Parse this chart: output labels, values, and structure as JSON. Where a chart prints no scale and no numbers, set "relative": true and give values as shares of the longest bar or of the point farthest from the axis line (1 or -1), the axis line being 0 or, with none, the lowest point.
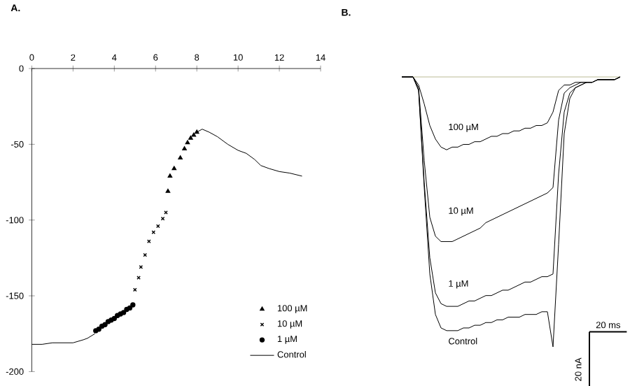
{
  "chart_data": [
    {
      "type": "line",
      "title": "A.",
      "xlim": [
        0,
        14
      ],
      "ylim": [
        -200,
        0
      ],
      "xticks": [
        0,
        2,
        4,
        6,
        8,
        10,
        12,
        14
      ],
      "yticks": [
        -200,
        -150,
        -100,
        -50,
        0
      ],
      "legend": "bottom right",
      "grid": false,
      "series": [
        {
          "name": "100 µM",
          "type": "scatter",
          "marker": "triangle",
          "color": "#000000",
          "x": [
            6.6,
            6.7,
            6.9,
            7.2,
            7.4,
            7.55,
            7.7,
            7.85,
            8.0
          ],
          "values": [
            -81,
            -71,
            -66,
            -59,
            -53,
            -49,
            -46,
            -44,
            -42
          ]
        },
        {
          "name": "10 µM",
          "type": "scatter",
          "marker": "cross",
          "color": "#000000",
          "x": [
            5.0,
            5.18,
            5.29,
            5.49,
            5.68,
            5.9,
            6.12,
            6.35,
            6.5
          ],
          "values": [
            -146,
            -138,
            -131,
            -123,
            -114,
            -108,
            -104,
            -99,
            -95
          ]
        },
        {
          "name": "1 µM",
          "type": "scatter",
          "marker": "circle",
          "color": "#000000",
          "x": [
            3.1,
            3.25,
            3.4,
            3.55,
            3.7,
            3.85,
            4.0,
            4.15,
            4.3,
            4.45,
            4.6,
            4.75,
            4.9
          ],
          "values": [
            -173,
            -172,
            -170,
            -169,
            -167,
            -166,
            -165,
            -163,
            -162,
            -161,
            -159,
            -158,
            -156
          ]
        },
        {
          "name": "Control",
          "type": "line",
          "marker": "none",
          "color": "#000000",
          "x": [
            0,
            0.5,
            1.0,
            1.5,
            2.0,
            2.5,
            2.7,
            3.06,
            5.5,
            8.0,
            8.26,
            8.6,
            9.0,
            9.5,
            10.0,
            10.4,
            10.8,
            11.1,
            11.5,
            12.0,
            12.5,
            13.1
          ],
          "values": [
            -182,
            -182,
            -181,
            -181,
            -181,
            -179,
            -178,
            -175,
            null,
            -42,
            -40,
            -42,
            -45,
            -50,
            -54,
            -56,
            -60,
            -64,
            -66,
            -68,
            -69,
            -71
          ]
        }
      ]
    },
    {
      "type": "line",
      "title": "B.",
      "relative": true,
      "legend": false,
      "marker": "none",
      "categories": [
        null,
        null,
        null,
        null,
        null,
        null,
        null,
        null,
        null,
        null,
        null,
        null,
        null,
        null,
        null,
        null,
        null,
        null,
        null,
        null,
        null,
        null,
        null,
        null,
        null,
        null,
        null,
        null,
        null,
        null,
        null,
        null,
        null,
        null,
        null,
        null,
        null,
        null,
        null,
        null
      ],
      "annotations": [
        "20 ms",
        "20 nA"
      ],
      "series": [
        {
          "name": "100 µM",
          "color": "#000000",
          "values": [
            0,
            0,
            0,
            -0.03,
            -0.1,
            -0.18,
            -0.23,
            -0.26,
            -0.27,
            -0.26,
            -0.26,
            -0.25,
            -0.25,
            -0.24,
            -0.24,
            -0.23,
            -0.22,
            -0.22,
            -0.21,
            -0.21,
            -0.2,
            -0.2,
            -0.19,
            -0.19,
            -0.18,
            -0.18,
            -0.17,
            -0.13,
            -0.05,
            -0.03,
            -0.03,
            -0.02,
            -0.02,
            -0.02,
            -0.02,
            -0.01,
            -0.01,
            -0.01,
            -0.01,
            0
          ]
        },
        {
          "name": "10 µM",
          "color": "#000000",
          "values": [
            0,
            0,
            0,
            -0.04,
            -0.31,
            -0.52,
            -0.59,
            -0.61,
            -0.61,
            -0.61,
            -0.6,
            -0.59,
            -0.58,
            -0.57,
            -0.56,
            -0.54,
            -0.53,
            -0.52,
            -0.51,
            -0.5,
            -0.49,
            -0.48,
            -0.47,
            -0.46,
            -0.45,
            -0.44,
            -0.43,
            -0.41,
            -0.16,
            -0.06,
            -0.04,
            -0.03,
            -0.02,
            -0.02,
            -0.02,
            -0.01,
            -0.01,
            -0.01,
            -0.01,
            0
          ]
        },
        {
          "name": "1 µM",
          "color": "#000000",
          "values": [
            0,
            0,
            0,
            -0.05,
            -0.39,
            -0.67,
            -0.8,
            -0.84,
            -0.85,
            -0.85,
            -0.85,
            -0.84,
            -0.83,
            -0.83,
            -0.82,
            -0.81,
            -0.81,
            -0.8,
            -0.79,
            -0.79,
            -0.78,
            -0.77,
            -0.76,
            -0.76,
            -0.75,
            -0.74,
            -0.74,
            -0.73,
            -0.36,
            -0.13,
            -0.06,
            -0.04,
            -0.03,
            -0.02,
            -0.02,
            -0.01,
            -0.01,
            -0.01,
            -0.01,
            0
          ]
        },
        {
          "name": "Control",
          "color": "#000000",
          "values": [
            0,
            0,
            0,
            -0.05,
            -0.41,
            -0.73,
            -0.88,
            -0.93,
            -0.94,
            -0.94,
            -0.94,
            -0.93,
            -0.93,
            -0.92,
            -0.92,
            -0.91,
            -0.91,
            -0.9,
            -0.9,
            -0.89,
            -0.89,
            -0.89,
            -0.88,
            -0.88,
            -0.88,
            -0.87,
            -0.87,
            -1,
            -0.62,
            -0.21,
            -0.08,
            -0.04,
            -0.03,
            -0.02,
            -0.02,
            -0.01,
            -0.01,
            -0.01,
            -0.01,
            0
          ]
        }
      ]
    }
  ]
}
